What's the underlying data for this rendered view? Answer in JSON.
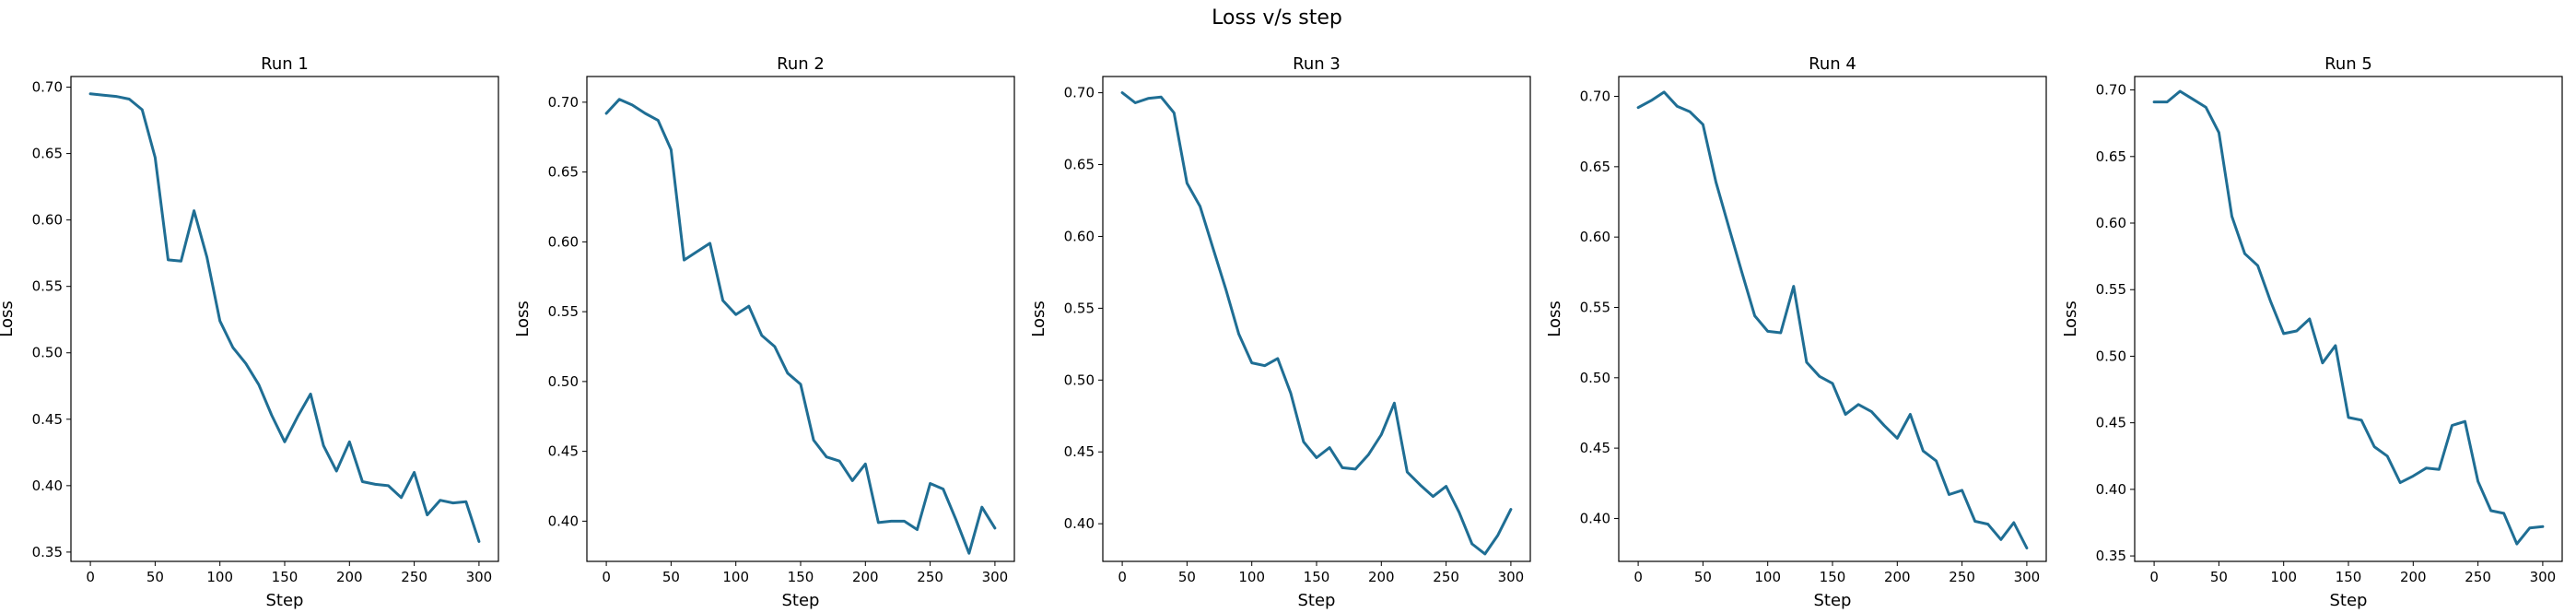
{
  "chart_data": {
    "suptitle": "Loss v/s step",
    "type": "line",
    "line_color": "#1f6e94",
    "grid": false,
    "charts": [
      {
        "title": "Run 1",
        "xlabel": "Step",
        "ylabel": "Loss",
        "xlim": [
          -15,
          315
        ],
        "ylim": [
          0.343,
          0.708
        ],
        "xticks": [
          0,
          50,
          100,
          150,
          200,
          250,
          300
        ],
        "yticks": [
          0.35,
          0.4,
          0.45,
          0.5,
          0.55,
          0.6,
          0.65,
          0.7
        ],
        "ytick_labels": [
          "0.35",
          "0.40",
          "0.45",
          "0.50",
          "0.55",
          "0.60",
          "0.65",
          "0.70"
        ],
        "x": [
          0,
          10,
          20,
          30,
          40,
          50,
          60,
          70,
          80,
          90,
          100,
          110,
          120,
          130,
          140,
          150,
          160,
          170,
          180,
          190,
          200,
          210,
          220,
          230,
          240,
          250,
          260,
          270,
          280,
          290,
          300
        ],
        "y": [
          0.695,
          0.694,
          0.693,
          0.691,
          0.683,
          0.647,
          0.57,
          0.569,
          0.607,
          0.572,
          0.524,
          0.504,
          0.492,
          0.476,
          0.453,
          0.433,
          0.452,
          0.469,
          0.43,
          0.411,
          0.433,
          0.403,
          0.401,
          0.4,
          0.391,
          0.41,
          0.378,
          0.389,
          0.387,
          0.388,
          0.358
        ]
      },
      {
        "title": "Run 2",
        "xlabel": "Step",
        "ylabel": "Loss",
        "xlim": [
          -15,
          315
        ],
        "ylim": [
          0.3712,
          0.7184
        ],
        "xticks": [
          0,
          50,
          100,
          150,
          200,
          250,
          300
        ],
        "yticks": [
          0.4,
          0.45,
          0.5,
          0.55,
          0.6,
          0.65,
          0.7
        ],
        "ytick_labels": [
          "0.40",
          "0.45",
          "0.50",
          "0.55",
          "0.60",
          "0.65",
          "0.70"
        ],
        "x": [
          0,
          10,
          20,
          30,
          40,
          50,
          60,
          70,
          80,
          90,
          100,
          110,
          120,
          130,
          140,
          150,
          160,
          170,
          180,
          190,
          200,
          210,
          220,
          230,
          240,
          250,
          260,
          270,
          280,
          290,
          300
        ],
        "y": [
          0.692,
          0.702,
          0.698,
          0.692,
          0.687,
          0.666,
          0.587,
          0.593,
          0.599,
          0.558,
          0.548,
          0.554,
          0.533,
          0.525,
          0.506,
          0.498,
          0.458,
          0.446,
          0.443,
          0.429,
          0.441,
          0.399,
          0.4,
          0.4,
          0.394,
          0.427,
          0.423,
          0.401,
          0.377,
          0.41,
          0.395
        ]
      },
      {
        "title": "Run 3",
        "xlabel": "Step",
        "ylabel": "Loss",
        "xlim": [
          -15,
          315
        ],
        "ylim": [
          0.3738,
          0.7113
        ],
        "xticks": [
          0,
          50,
          100,
          150,
          200,
          250,
          300
        ],
        "yticks": [
          0.4,
          0.45,
          0.5,
          0.55,
          0.6,
          0.65,
          0.7
        ],
        "ytick_labels": [
          "0.40",
          "0.45",
          "0.50",
          "0.55",
          "0.60",
          "0.65",
          "0.70"
        ],
        "x": [
          0,
          10,
          20,
          30,
          40,
          50,
          60,
          70,
          80,
          90,
          100,
          110,
          120,
          130,
          140,
          150,
          160,
          170,
          180,
          190,
          200,
          210,
          220,
          230,
          240,
          250,
          260,
          270,
          280,
          290,
          300
        ],
        "y": [
          0.7,
          0.693,
          0.696,
          0.697,
          0.686,
          0.637,
          0.621,
          0.592,
          0.563,
          0.532,
          0.512,
          0.51,
          0.515,
          0.491,
          0.457,
          0.446,
          0.453,
          0.439,
          0.438,
          0.448,
          0.462,
          0.484,
          0.436,
          0.427,
          0.419,
          0.426,
          0.408,
          0.386,
          0.379,
          0.392,
          0.41
        ]
      },
      {
        "title": "Run 4",
        "xlabel": "Step",
        "ylabel": "Loss",
        "xlim": [
          -15,
          315
        ],
        "ylim": [
          0.3695,
          0.7141
        ],
        "xticks": [
          0,
          50,
          100,
          150,
          200,
          250,
          300
        ],
        "yticks": [
          0.4,
          0.45,
          0.5,
          0.55,
          0.6,
          0.65,
          0.7
        ],
        "ytick_labels": [
          "0.40",
          "0.45",
          "0.50",
          "0.55",
          "0.60",
          "0.65",
          "0.70"
        ],
        "x": [
          0,
          10,
          20,
          30,
          40,
          50,
          60,
          70,
          80,
          90,
          100,
          110,
          120,
          130,
          140,
          150,
          160,
          170,
          180,
          190,
          200,
          210,
          220,
          230,
          240,
          250,
          260,
          270,
          280,
          290,
          300
        ],
        "y": [
          0.692,
          0.697,
          0.703,
          0.693,
          0.689,
          0.68,
          0.639,
          0.607,
          0.575,
          0.544,
          0.533,
          0.532,
          0.565,
          0.511,
          0.501,
          0.496,
          0.474,
          0.481,
          0.476,
          0.466,
          0.457,
          0.474,
          0.448,
          0.441,
          0.417,
          0.42,
          0.398,
          0.396,
          0.385,
          0.397,
          0.379
        ]
      },
      {
        "title": "Run 5",
        "xlabel": "Step",
        "ylabel": "Loss",
        "xlim": [
          -15,
          315
        ],
        "ylim": [
          0.3459,
          0.7101
        ],
        "xticks": [
          0,
          50,
          100,
          150,
          200,
          250,
          300
        ],
        "yticks": [
          0.35,
          0.4,
          0.45,
          0.5,
          0.55,
          0.6,
          0.65,
          0.7
        ],
        "ytick_labels": [
          "0.35",
          "0.40",
          "0.45",
          "0.50",
          "0.55",
          "0.60",
          "0.65",
          "0.70"
        ],
        "x": [
          0,
          10,
          20,
          30,
          40,
          50,
          60,
          70,
          80,
          90,
          100,
          110,
          120,
          130,
          140,
          150,
          160,
          170,
          180,
          190,
          200,
          210,
          220,
          230,
          240,
          250,
          260,
          270,
          280,
          290,
          300
        ],
        "y": [
          0.691,
          0.691,
          0.699,
          0.693,
          0.687,
          0.668,
          0.605,
          0.577,
          0.568,
          0.541,
          0.517,
          0.519,
          0.528,
          0.495,
          0.508,
          0.454,
          0.452,
          0.432,
          0.425,
          0.405,
          0.41,
          0.416,
          0.415,
          0.448,
          0.451,
          0.406,
          0.384,
          0.382,
          0.359,
          0.371,
          0.372
        ]
      }
    ]
  }
}
